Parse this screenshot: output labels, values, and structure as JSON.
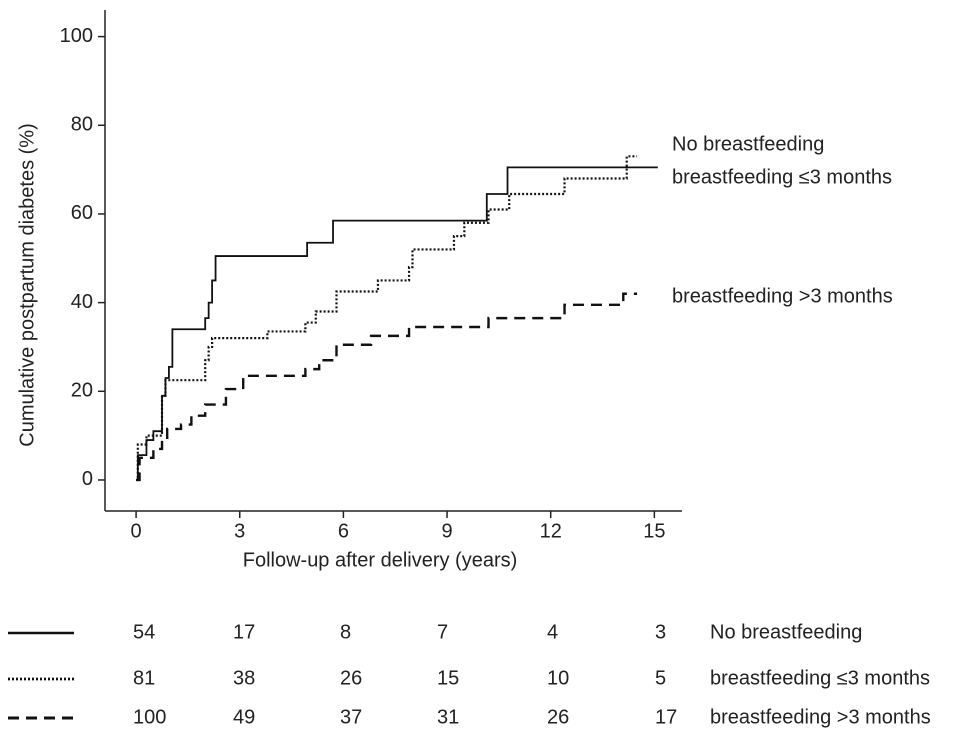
{
  "chart_data": {
    "type": "step",
    "x_label": "Follow-up after delivery (years)",
    "y_label": "Cumulative postpartum diabetes (%)",
    "xlim": [
      -0.9,
      15.8
    ],
    "ylim": [
      -7,
      106
    ],
    "xticks": [
      0,
      3,
      6,
      9,
      12,
      15
    ],
    "yticks": [
      0,
      20,
      40,
      60,
      80,
      100
    ],
    "series": [
      {
        "name": "No breastfeeding",
        "color": "#111111",
        "dash": "solid",
        "x": [
          0,
          0.05,
          0.3,
          0.5,
          0.75,
          0.85,
          0.95,
          1.05,
          2.0,
          2.1,
          2.2,
          2.3,
          4.95,
          5.7,
          10.15,
          10.75,
          15.1
        ],
        "values": [
          0,
          5.6,
          9,
          11,
          19,
          23,
          25.5,
          34,
          36.5,
          40,
          45,
          50.5,
          53.5,
          58.5,
          64.5,
          70.5,
          70.5
        ]
      },
      {
        "name": "breastfeeding  ≤3 months",
        "color": "#111111",
        "dash": "dotted",
        "x": [
          0,
          0.05,
          0.3,
          0.75,
          0.85,
          2.0,
          2.1,
          2.2,
          3.8,
          4.9,
          5.2,
          5.8,
          7.0,
          7.9,
          8.0,
          9.2,
          9.5,
          10.2,
          10.8,
          12.4,
          14.2,
          14.5
        ],
        "values": [
          0,
          8,
          10,
          19,
          22.5,
          27,
          30,
          32,
          33.5,
          35.5,
          38,
          42.5,
          45,
          48,
          52,
          55,
          58,
          61,
          64.5,
          68,
          73,
          73
        ]
      },
      {
        "name": "breastfeeding >3 months",
        "color": "#111111",
        "dash": "dashed",
        "x": [
          0,
          0.1,
          0.5,
          0.75,
          0.9,
          1.3,
          1.6,
          2.0,
          2.6,
          3.1,
          4.9,
          5.3,
          5.8,
          6.8,
          7.9,
          10.2,
          12.4,
          14.1,
          14.5
        ],
        "values": [
          0,
          5,
          7,
          9,
          11.5,
          12.5,
          14.5,
          17,
          20.5,
          23.5,
          25,
          27,
          30.5,
          32.5,
          34.5,
          36.5,
          39.5,
          42,
          42
        ]
      }
    ],
    "risk_table": [
      [
        54,
        17,
        8,
        7,
        4,
        3
      ],
      [
        81,
        38,
        26,
        15,
        10,
        5
      ],
      [
        100,
        49,
        37,
        31,
        26,
        17
      ]
    ]
  }
}
